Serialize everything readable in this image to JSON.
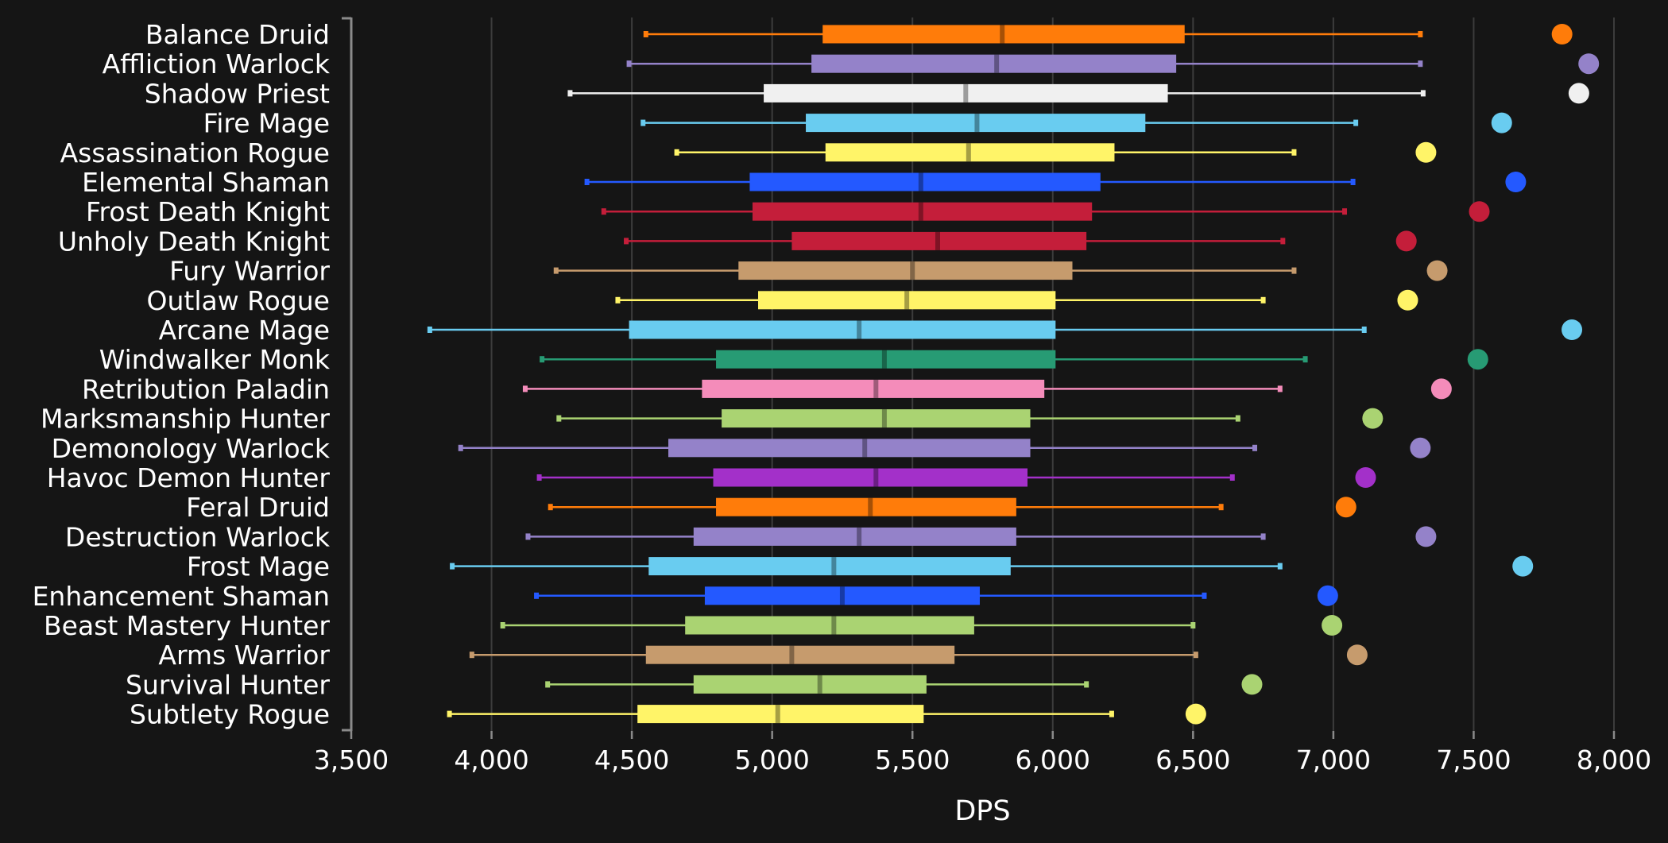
{
  "chart_data": {
    "type": "box",
    "xlabel": "DPS",
    "xlim": [
      3500,
      8000
    ],
    "xticks": [
      3500,
      4000,
      4500,
      5000,
      5500,
      6000,
      6500,
      7000,
      7500,
      8000
    ],
    "xtick_labels": [
      "3,500",
      "4,000",
      "4,500",
      "5,000",
      "5,500",
      "6,000",
      "6,500",
      "7,000",
      "7,500",
      "8,000"
    ],
    "grid": "vertical",
    "categories": [
      "Balance Druid",
      "Affliction Warlock",
      "Shadow Priest",
      "Fire Mage",
      "Assassination Rogue",
      "Elemental Shaman",
      "Frost Death Knight",
      "Unholy Death Knight",
      "Fury Warrior",
      "Outlaw Rogue",
      "Arcane Mage",
      "Windwalker Monk",
      "Retribution Paladin",
      "Marksmanship Hunter",
      "Demonology Warlock",
      "Havoc Demon Hunter",
      "Feral Druid",
      "Destruction Warlock",
      "Frost Mage",
      "Enhancement Shaman",
      "Beast Mastery Hunter",
      "Arms Warrior",
      "Survival Hunter",
      "Subtlety Rogue"
    ],
    "series": [
      {
        "min": 4550,
        "q1": 5180,
        "median": 5820,
        "q3": 6470,
        "max": 7310,
        "outlier": 7815,
        "color": "#ff7c0a"
      },
      {
        "min": 4490,
        "q1": 5140,
        "median": 5800,
        "q3": 6440,
        "max": 7310,
        "outlier": 7910,
        "color": "#9482c9"
      },
      {
        "min": 4280,
        "q1": 4970,
        "median": 5690,
        "q3": 6410,
        "max": 7320,
        "outlier": 7875,
        "color": "#f0f0f0"
      },
      {
        "min": 4540,
        "q1": 5120,
        "median": 5730,
        "q3": 6330,
        "max": 7080,
        "outlier": 7600,
        "color": "#69ccf0"
      },
      {
        "min": 4660,
        "q1": 5190,
        "median": 5700,
        "q3": 6220,
        "max": 6860,
        "outlier": 7330,
        "color": "#fff468"
      },
      {
        "min": 4340,
        "q1": 4920,
        "median": 5530,
        "q3": 6170,
        "max": 7070,
        "outlier": 7650,
        "color": "#2459ff"
      },
      {
        "min": 4400,
        "q1": 4930,
        "median": 5530,
        "q3": 6140,
        "max": 7040,
        "outlier": 7520,
        "color": "#c41e3a"
      },
      {
        "min": 4480,
        "q1": 5070,
        "median": 5590,
        "q3": 6120,
        "max": 6820,
        "outlier": 7260,
        "color": "#c41e3a"
      },
      {
        "min": 4230,
        "q1": 4880,
        "median": 5500,
        "q3": 6070,
        "max": 6860,
        "outlier": 7370,
        "color": "#c69b6d"
      },
      {
        "min": 4450,
        "q1": 4950,
        "median": 5480,
        "q3": 6010,
        "max": 6750,
        "outlier": 7265,
        "color": "#fff468"
      },
      {
        "min": 3780,
        "q1": 4490,
        "median": 5310,
        "q3": 6010,
        "max": 7110,
        "outlier": 7850,
        "color": "#69ccf0"
      },
      {
        "min": 4180,
        "q1": 4800,
        "median": 5400,
        "q3": 6010,
        "max": 6900,
        "outlier": 7515,
        "color": "#279b74"
      },
      {
        "min": 4120,
        "q1": 4750,
        "median": 5370,
        "q3": 5970,
        "max": 6810,
        "outlier": 7385,
        "color": "#f48cba"
      },
      {
        "min": 4240,
        "q1": 4820,
        "median": 5400,
        "q3": 5920,
        "max": 6660,
        "outlier": 7140,
        "color": "#aad372"
      },
      {
        "min": 3890,
        "q1": 4630,
        "median": 5330,
        "q3": 5920,
        "max": 6720,
        "outlier": 7310,
        "color": "#9482c9"
      },
      {
        "min": 4170,
        "q1": 4790,
        "median": 5370,
        "q3": 5910,
        "max": 6640,
        "outlier": 7115,
        "color": "#a330c9"
      },
      {
        "min": 4210,
        "q1": 4800,
        "median": 5350,
        "q3": 5870,
        "max": 6600,
        "outlier": 7045,
        "color": "#ff7c0a"
      },
      {
        "min": 4130,
        "q1": 4720,
        "median": 5310,
        "q3": 5870,
        "max": 6750,
        "outlier": 7330,
        "color": "#9482c9"
      },
      {
        "min": 3860,
        "q1": 4560,
        "median": 5220,
        "q3": 5850,
        "max": 6810,
        "outlier": 7675,
        "color": "#69ccf0"
      },
      {
        "min": 4160,
        "q1": 4760,
        "median": 5250,
        "q3": 5740,
        "max": 6540,
        "outlier": 6980,
        "color": "#2459ff"
      },
      {
        "min": 4040,
        "q1": 4690,
        "median": 5220,
        "q3": 5720,
        "max": 6500,
        "outlier": 6995,
        "color": "#aad372"
      },
      {
        "min": 3930,
        "q1": 4550,
        "median": 5070,
        "q3": 5650,
        "max": 6510,
        "outlier": 7085,
        "color": "#c69b6d"
      },
      {
        "min": 4200,
        "q1": 4720,
        "median": 5170,
        "q3": 5550,
        "max": 6120,
        "outlier": 6710,
        "color": "#aad372"
      },
      {
        "min": 3850,
        "q1": 4520,
        "median": 5020,
        "q3": 5540,
        "max": 6210,
        "outlier": 6510,
        "color": "#fff468"
      }
    ]
  }
}
